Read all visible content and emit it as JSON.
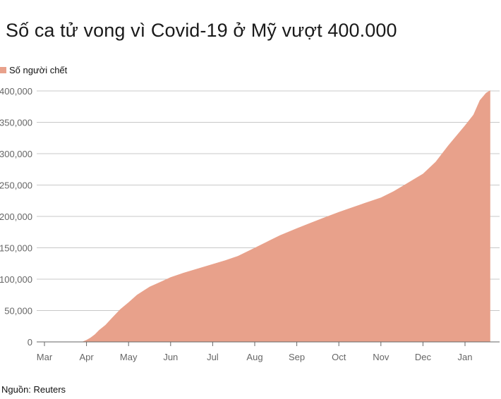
{
  "title": "Số ca tử vong vì Covid-19 ở Mỹ vượt 400.000",
  "source": "Nguồn: Reuters",
  "chart_data": {
    "type": "area",
    "color": "#e8a18b",
    "series": [
      {
        "name": "Số người chết"
      }
    ],
    "xlabel": "",
    "ylabel": "",
    "x_ticks": [
      "Mar",
      "Apr",
      "May",
      "Jun",
      "Jul",
      "Aug",
      "Sep",
      "Oct",
      "Nov",
      "Dec",
      "Jan"
    ],
    "y_ticks": [
      "0",
      "50,000",
      "100,000",
      "150,000",
      "200,000",
      "250,000",
      "300,000",
      "350,000",
      "400,000"
    ],
    "ylim": [
      0,
      400000
    ],
    "grid": true,
    "legend": "top-left",
    "x_unit": "month index (0 = start of Mar 2020)",
    "points": [
      [
        0,
        0
      ],
      [
        0.5,
        0
      ],
      [
        0.8,
        0
      ],
      [
        0.9,
        300
      ],
      [
        1.0,
        3000
      ],
      [
        1.1,
        7000
      ],
      [
        1.2,
        12000
      ],
      [
        1.3,
        19000
      ],
      [
        1.45,
        27000
      ],
      [
        1.6,
        38000
      ],
      [
        1.8,
        52000
      ],
      [
        2.0,
        63000
      ],
      [
        2.2,
        75000
      ],
      [
        2.5,
        88000
      ],
      [
        2.8,
        97000
      ],
      [
        3.0,
        103000
      ],
      [
        3.3,
        110000
      ],
      [
        3.6,
        116000
      ],
      [
        4.0,
        124000
      ],
      [
        4.3,
        130000
      ],
      [
        4.6,
        137000
      ],
      [
        5.0,
        150000
      ],
      [
        5.3,
        160000
      ],
      [
        5.6,
        170000
      ],
      [
        6.0,
        181000
      ],
      [
        6.3,
        189000
      ],
      [
        6.6,
        197000
      ],
      [
        7.0,
        207000
      ],
      [
        7.3,
        214000
      ],
      [
        7.6,
        221000
      ],
      [
        8.0,
        230000
      ],
      [
        8.3,
        240000
      ],
      [
        8.6,
        252000
      ],
      [
        9.0,
        268000
      ],
      [
        9.3,
        287000
      ],
      [
        9.6,
        313000
      ],
      [
        10.0,
        345000
      ],
      [
        10.2,
        362000
      ],
      [
        10.35,
        385000
      ],
      [
        10.5,
        397000
      ],
      [
        10.6,
        401000
      ]
    ]
  }
}
